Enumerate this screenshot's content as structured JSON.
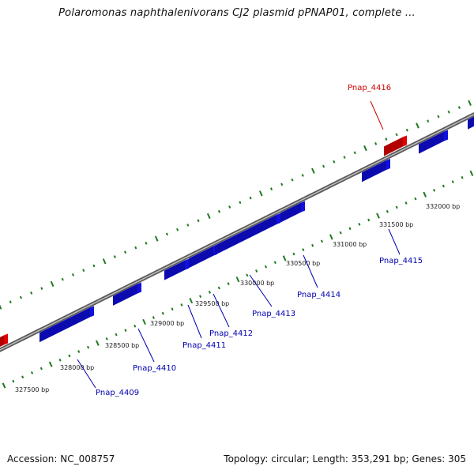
{
  "title": "Polaromonas naphthalenivorans CJ2 plasmid pPNAP01, complete ...",
  "footer": {
    "accession": "Accession: NC_008757",
    "summary": "Topology: circular; Length: 353,291 bp; Genes: 305"
  },
  "colors": {
    "backbone": "#8a8a8a",
    "tick": "#1f7a1f",
    "forward_gene": "#e00000",
    "reverse_gene": "#1010e0",
    "forward_label": "#cc0000",
    "reverse_label": "#0000b0"
  },
  "bp_labels": [
    "327500 bp",
    "328000 bp",
    "328500 bp",
    "329000 bp",
    "329500 bp",
    "330000 bp",
    "330500 bp",
    "331000 bp",
    "331500 bp",
    "332000 bp"
  ],
  "genes": [
    {
      "name": "Pnap_4409",
      "strand": "reverse"
    },
    {
      "name": "Pnap_4410",
      "strand": "reverse"
    },
    {
      "name": "Pnap_4411",
      "strand": "reverse"
    },
    {
      "name": "Pnap_4412",
      "strand": "reverse"
    },
    {
      "name": "Pnap_4413",
      "strand": "reverse"
    },
    {
      "name": "Pnap_4414",
      "strand": "reverse"
    },
    {
      "name": "Pnap_4415",
      "strand": "reverse"
    },
    {
      "name": "Pnap_4416",
      "strand": "forward"
    }
  ]
}
